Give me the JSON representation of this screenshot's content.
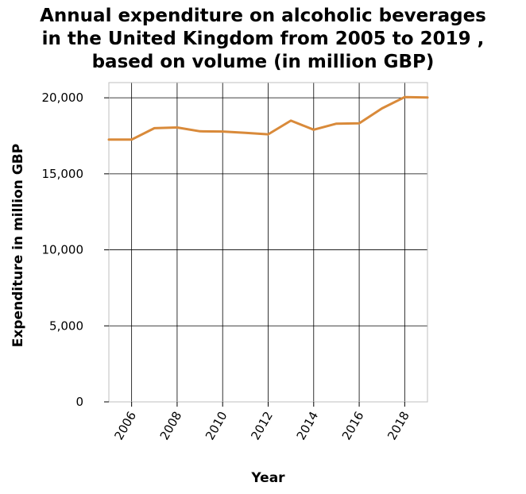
{
  "chart_data": {
    "type": "line",
    "title": [
      "Annual expenditure on alcoholic beverages",
      "in the United Kingdom from 2005 to 2019 ,",
      "based on volume (in million GBP)"
    ],
    "xlabel": "Year",
    "ylabel": "Expenditure in million GBP",
    "x": [
      2005,
      2006,
      2007,
      2008,
      2009,
      2010,
      2011,
      2012,
      2013,
      2014,
      2015,
      2016,
      2017,
      2018,
      2019
    ],
    "series": [
      {
        "values": [
          17250,
          17250,
          18000,
          18050,
          17800,
          17780,
          17700,
          17600,
          18500,
          17900,
          18300,
          18320,
          19300,
          20050,
          20020
        ]
      }
    ],
    "xlim": [
      2005,
      2019
    ],
    "ylim": [
      0,
      21000
    ],
    "x_ticks": [
      2006,
      2008,
      2010,
      2012,
      2014,
      2016,
      2018
    ],
    "x_tick_labels": [
      "2006",
      "2008",
      "2010",
      "2012",
      "2014",
      "2016",
      "2018"
    ],
    "y_ticks": [
      0,
      5000,
      10000,
      15000,
      20000
    ],
    "y_tick_labels": [
      "0",
      "5,000",
      "10,000",
      "15,000",
      "20,000"
    ],
    "grid": true,
    "line_color": "#d98a3a",
    "grid_color": "#000000",
    "frame_color": "#bfbfbf"
  }
}
